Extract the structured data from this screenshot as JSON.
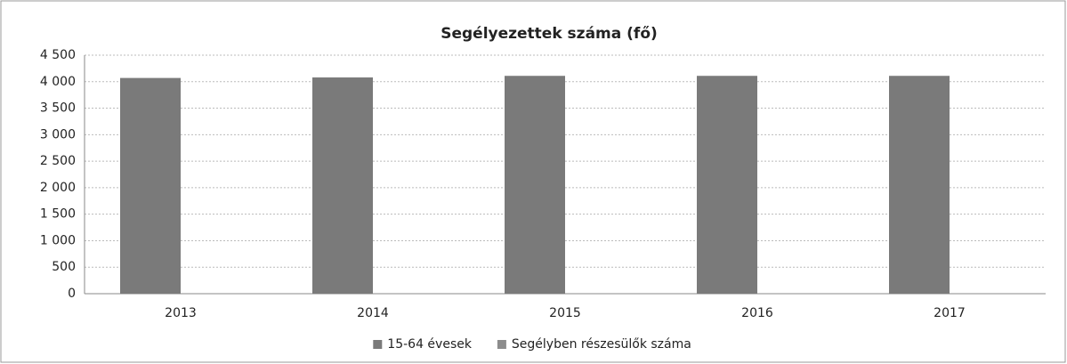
{
  "chart_data": {
    "type": "bar",
    "title": "Segélyezettek száma (fő)",
    "categories": [
      "2013",
      "2014",
      "2015",
      "2016",
      "2017"
    ],
    "series": [
      {
        "name": "15-64 évesek",
        "color": "#7a7a7a",
        "values": [
          4070,
          4080,
          4110,
          4110,
          4110
        ]
      },
      {
        "name": "Segélyben részesülők száma",
        "color": "#8c8c8c",
        "values": [
          null,
          null,
          null,
          null,
          null
        ]
      }
    ],
    "ylim": [
      0,
      4500
    ],
    "yticks": [
      0,
      500,
      {
        "value": 1000,
        "label": "1 000"
      },
      {
        "value": 1500,
        "label": "1 500"
      },
      {
        "value": 2000,
        "label": "2 000"
      },
      {
        "value": 2500,
        "label": "2 500"
      },
      {
        "value": 3000,
        "label": "3 000"
      },
      {
        "value": 3500,
        "label": "3 500"
      },
      {
        "value": 4000,
        "label": "4 000"
      },
      {
        "value": 4500,
        "label": "4 500"
      }
    ],
    "grid": true,
    "legend": "bottom"
  }
}
